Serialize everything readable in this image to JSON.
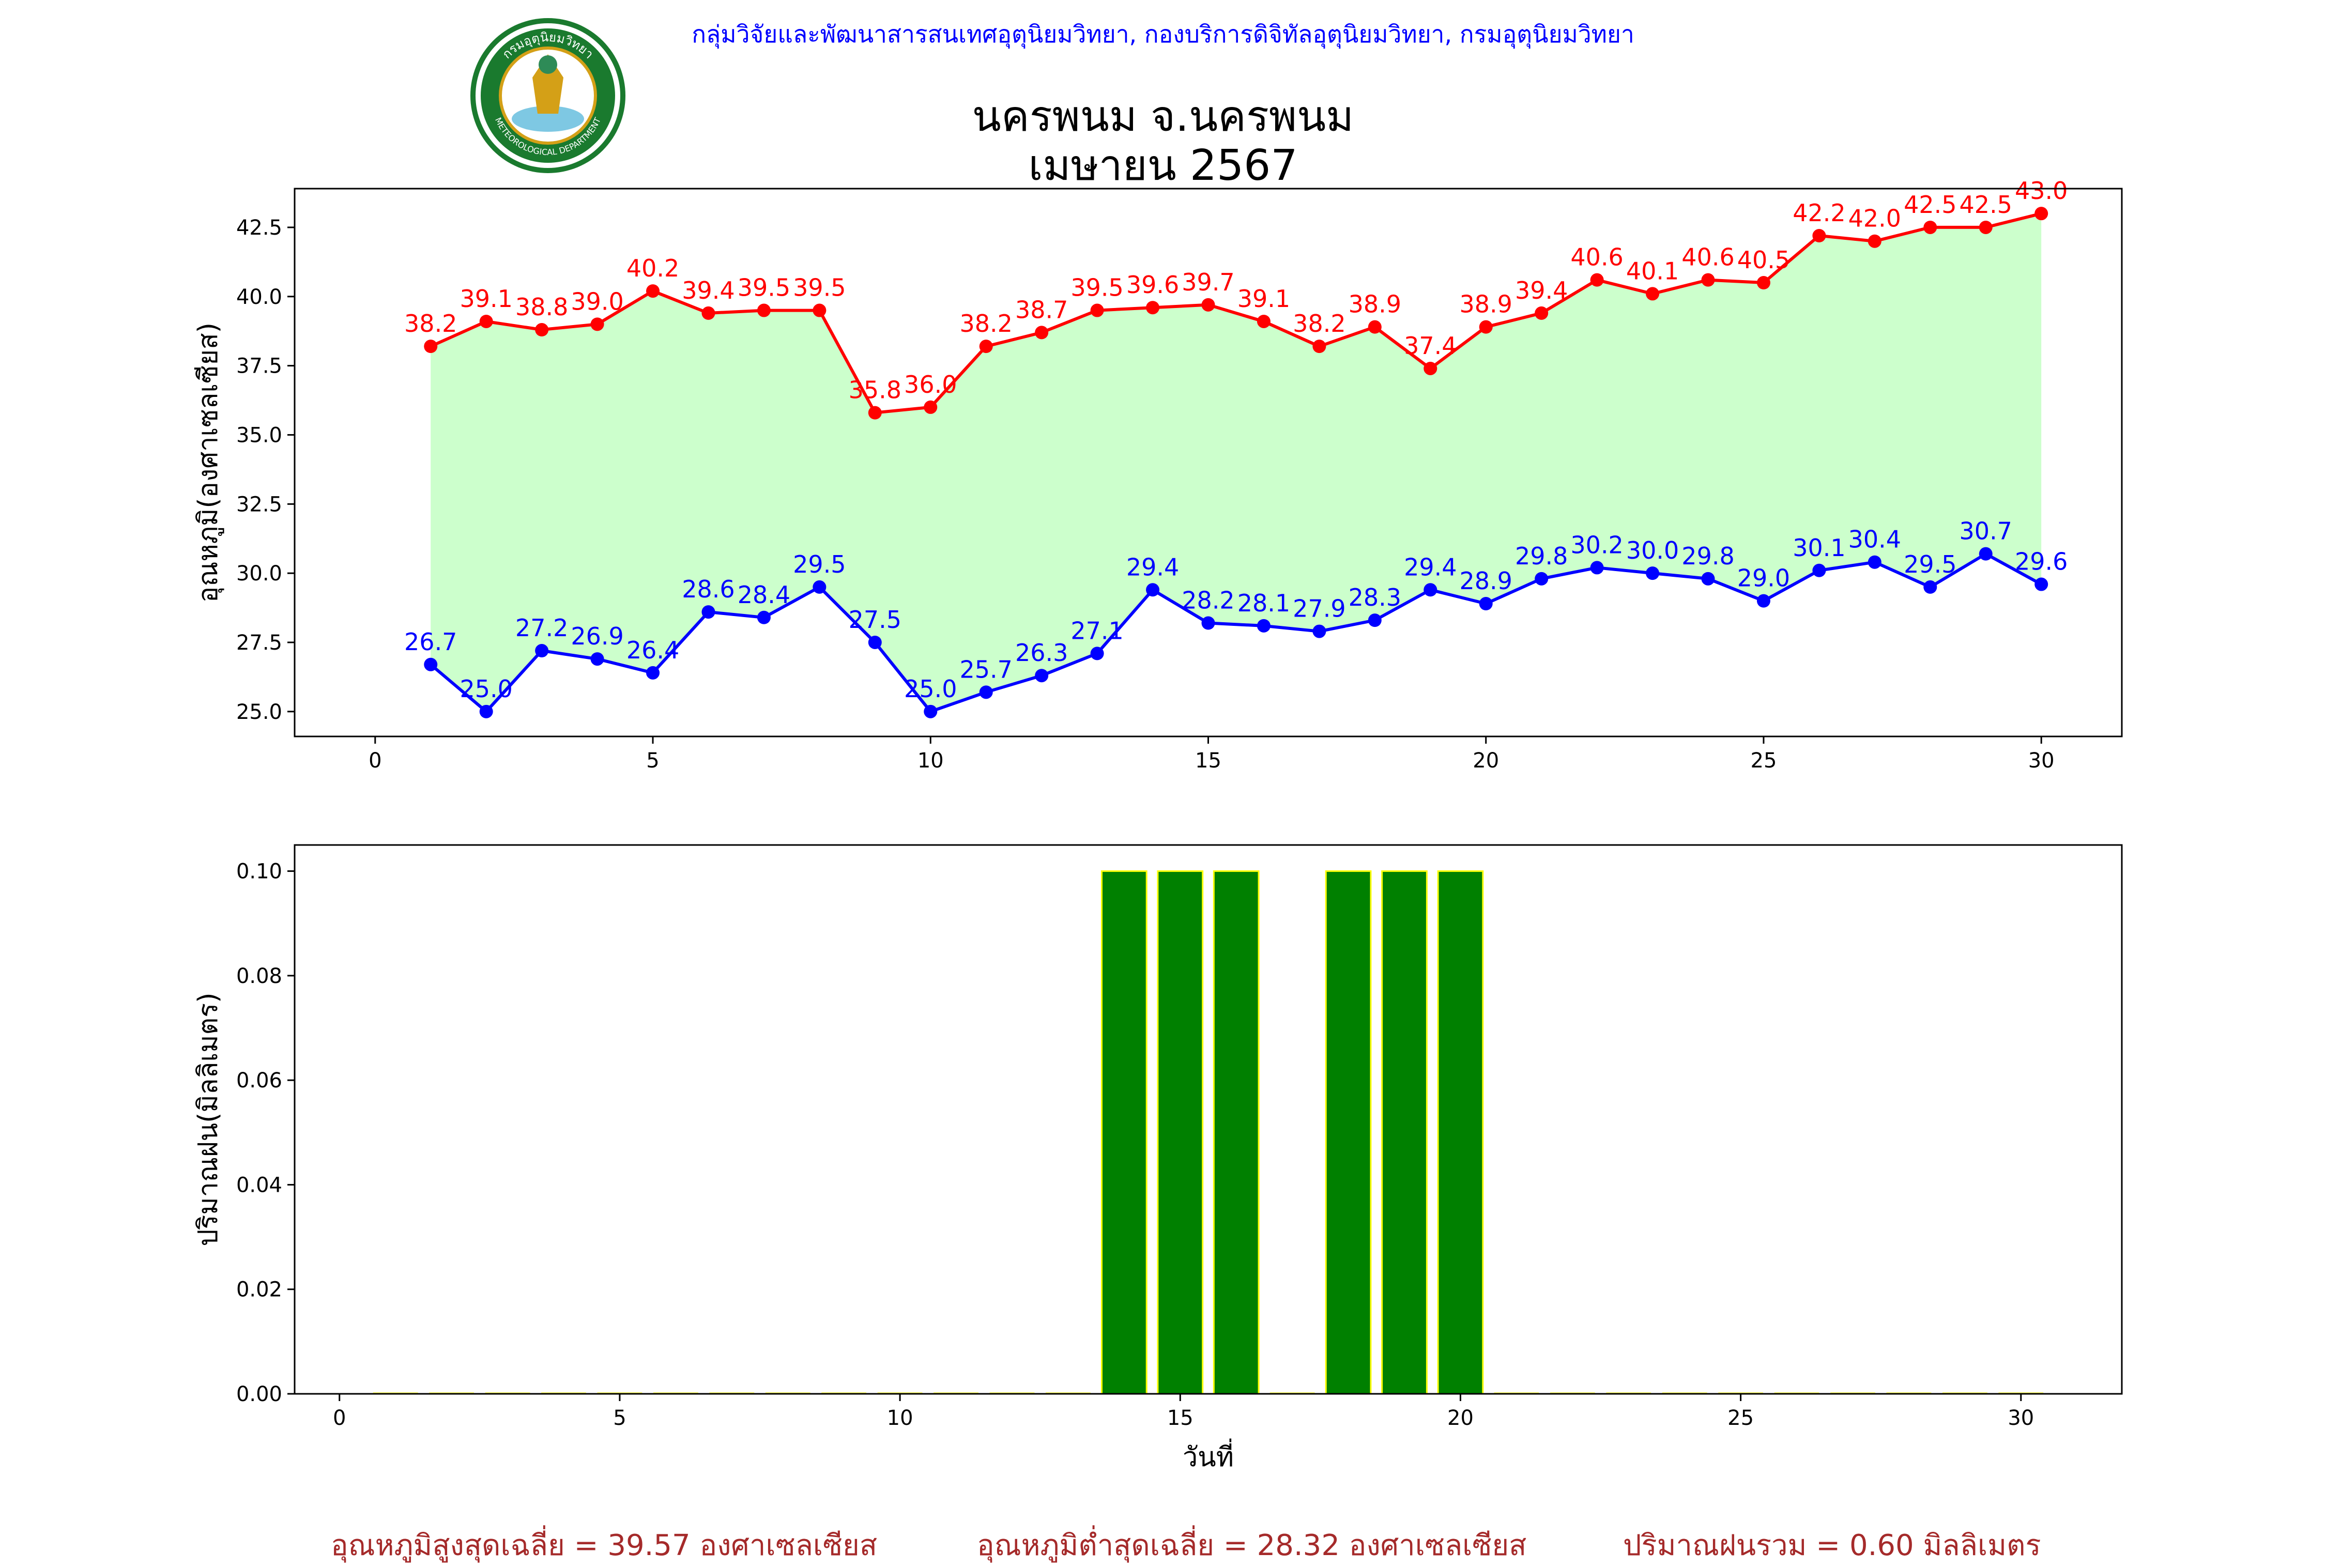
{
  "header": {
    "org_text": "กลุ่มวิจัยและพัฒนาสารสนเทศอุตุนิยมวิทยา, กองบริการดิจิทัลอุตุนิยมวิทยา, กรมอุตุนิยมวิทยา",
    "logo_text_top": "กรมอุตุนิยมวิทยา",
    "logo_text_bottom": "METEOROLOGICAL DEPARTMENT"
  },
  "footer": {
    "avg_max": "อุณหภูมิสูงสุดเฉลี่ย = 39.57 องศาเซลเซียส",
    "avg_min": "อุณหภูมิต่ำสุดเฉลี่ย = 28.32 องศาเซลเซียส",
    "rain_total": "ปริมาณฝนรวม = 0.60 มิลลิเมตร"
  },
  "colors": {
    "max": "#ff0000",
    "min": "#0000ff",
    "fill": "#ccffcc",
    "bar": "#008000",
    "bar_edge": "#ffff00"
  },
  "chart_data": [
    {
      "type": "line",
      "title": "นครพนม จ.นครพนม",
      "subtitle": "เมษายน 2567",
      "xlabel": "",
      "ylabel": "อุณหภูมิ(องศาเซลเซียส)",
      "x": [
        1,
        2,
        3,
        4,
        5,
        6,
        7,
        8,
        9,
        10,
        11,
        12,
        13,
        14,
        15,
        16,
        17,
        18,
        19,
        20,
        21,
        22,
        23,
        24,
        25,
        26,
        27,
        28,
        29,
        30
      ],
      "series": [
        {
          "values": [
            38.2,
            39.1,
            38.8,
            39.0,
            40.2,
            39.4,
            39.5,
            39.5,
            35.8,
            36.0,
            38.2,
            38.7,
            39.5,
            39.6,
            39.7,
            39.1,
            38.2,
            38.9,
            37.4,
            38.9,
            39.4,
            40.6,
            40.1,
            40.6,
            40.5,
            42.2,
            42.0,
            42.5,
            42.5,
            43.0
          ],
          "color": "#ff0000"
        },
        {
          "values": [
            26.7,
            25.0,
            27.2,
            26.9,
            26.4,
            28.6,
            28.4,
            29.5,
            27.5,
            25.0,
            25.7,
            26.3,
            27.1,
            29.4,
            28.2,
            28.1,
            27.9,
            28.3,
            29.4,
            28.9,
            29.8,
            30.2,
            30.0,
            29.8,
            29.0,
            30.1,
            30.4,
            29.5,
            30.7,
            29.6
          ],
          "color": "#0000ff"
        }
      ],
      "xlim": [
        -1.45,
        31.45
      ],
      "ylim": [
        24.1,
        43.9
      ],
      "xticks": [
        0,
        5,
        10,
        15,
        20,
        25,
        30
      ],
      "yticks": [
        25.0,
        27.5,
        30.0,
        32.5,
        35.0,
        37.5,
        40.0,
        42.5
      ],
      "grid": false
    },
    {
      "type": "bar",
      "xlabel": "วันที่",
      "ylabel": "ปริมาณฝน(มิลลิเมตร)",
      "x": [
        1,
        2,
        3,
        4,
        5,
        6,
        7,
        8,
        9,
        10,
        11,
        12,
        13,
        14,
        15,
        16,
        17,
        18,
        19,
        20,
        21,
        22,
        23,
        24,
        25,
        26,
        27,
        28,
        29,
        30
      ],
      "values": [
        0,
        0,
        0,
        0,
        0,
        0,
        0,
        0,
        0,
        0,
        0,
        0,
        0,
        0.1,
        0.1,
        0.1,
        0,
        0.1,
        0.1,
        0.1,
        0,
        0,
        0,
        0,
        0,
        0,
        0,
        0,
        0,
        0
      ],
      "xlim": [
        -0.8,
        31.8
      ],
      "ylim": [
        0,
        0.105
      ],
      "xticks": [
        0,
        5,
        10,
        15,
        20,
        25,
        30
      ],
      "yticks": [
        0.0,
        0.02,
        0.04,
        0.06,
        0.08,
        0.1
      ],
      "grid": false
    }
  ]
}
